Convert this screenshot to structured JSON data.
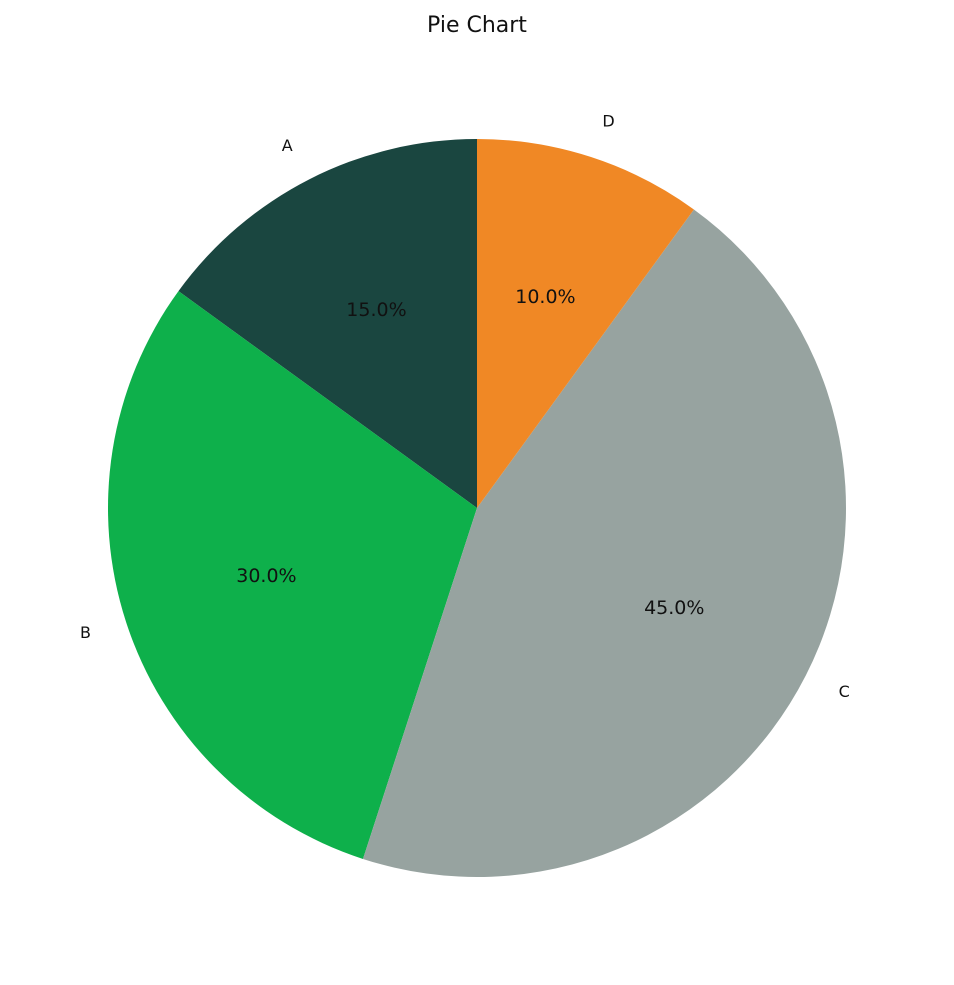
{
  "chart_data": {
    "type": "pie",
    "title": "Pie Chart",
    "categories": [
      "A",
      "B",
      "C",
      "D"
    ],
    "values": [
      15,
      30,
      45,
      10
    ],
    "value_labels": [
      "15.0%",
      "30.0%",
      "45.0%",
      "10.0%"
    ],
    "colors": [
      "#1a4640",
      "#0eb04b",
      "#97a3a0",
      "#f08825"
    ]
  }
}
